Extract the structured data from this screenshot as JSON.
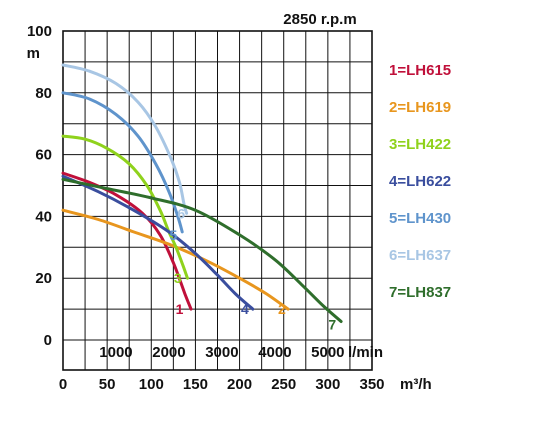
{
  "chart_data": {
    "type": "line",
    "title": "2850 r.p.m",
    "ylabel": "m",
    "xlabel_primary": "m³/h",
    "xlabel_secondary": "l/min",
    "ylim": [
      0,
      100
    ],
    "xlim": [
      0,
      350
    ],
    "yticks": [
      "0",
      "20",
      "40",
      "60",
      "80",
      "100"
    ],
    "xticks_primary": [
      "0",
      "50",
      "100",
      "150",
      "200",
      "250",
      "300",
      "350"
    ],
    "xticks_secondary": [
      "1000",
      "2000",
      "3000",
      "4000",
      "5000"
    ],
    "grid": true,
    "legend_position": "right",
    "series": [
      {
        "name": "1=LH615",
        "label": "1",
        "color": "#c0103a",
        "points": [
          [
            0,
            54
          ],
          [
            30,
            51
          ],
          [
            60,
            47
          ],
          [
            90,
            41
          ],
          [
            110,
            34
          ],
          [
            125,
            25
          ],
          [
            138,
            15
          ],
          [
            145,
            10
          ]
        ]
      },
      {
        "name": "2=LH619",
        "label": "2",
        "color": "#e8961e",
        "points": [
          [
            0,
            42
          ],
          [
            40,
            39
          ],
          [
            80,
            35
          ],
          [
            120,
            31
          ],
          [
            160,
            26
          ],
          [
            200,
            20
          ],
          [
            230,
            15
          ],
          [
            255,
            10
          ]
        ]
      },
      {
        "name": "3=LH422",
        "label": "3",
        "color": "#8fd21c",
        "points": [
          [
            0,
            66
          ],
          [
            25,
            65
          ],
          [
            50,
            62
          ],
          [
            75,
            57
          ],
          [
            95,
            50
          ],
          [
            110,
            42
          ],
          [
            120,
            35
          ],
          [
            128,
            30
          ],
          [
            136,
            24
          ],
          [
            141,
            20
          ]
        ]
      },
      {
        "name": "4=LH622",
        "label": "4",
        "color": "#3a4e9e",
        "points": [
          [
            0,
            53
          ],
          [
            40,
            48
          ],
          [
            80,
            42
          ],
          [
            120,
            35
          ],
          [
            150,
            28
          ],
          [
            175,
            21
          ],
          [
            195,
            15
          ],
          [
            215,
            10
          ]
        ]
      },
      {
        "name": "5=LH430",
        "label": "5",
        "color": "#5f94cc",
        "points": [
          [
            0,
            80
          ],
          [
            30,
            78
          ],
          [
            60,
            73
          ],
          [
            85,
            66
          ],
          [
            105,
            57
          ],
          [
            120,
            48
          ],
          [
            130,
            40
          ],
          [
            135,
            35
          ]
        ]
      },
      {
        "name": "6=LH637",
        "label": "6",
        "color": "#a8c6e4",
        "points": [
          [
            0,
            89
          ],
          [
            30,
            87
          ],
          [
            60,
            83
          ],
          [
            85,
            77
          ],
          [
            105,
            69
          ],
          [
            122,
            59
          ],
          [
            132,
            51
          ],
          [
            137,
            44
          ],
          [
            140,
            41
          ]
        ]
      },
      {
        "name": "7=LH837",
        "label": "7",
        "color": "#2f6e2c",
        "points": [
          [
            0,
            52
          ],
          [
            50,
            49
          ],
          [
            100,
            46
          ],
          [
            150,
            42
          ],
          [
            200,
            34
          ],
          [
            240,
            26
          ],
          [
            270,
            18
          ],
          [
            295,
            11
          ],
          [
            315,
            6
          ]
        ]
      }
    ],
    "label_points": {
      "1": [
        132,
        10
      ],
      "2": [
        248,
        10
      ],
      "3": [
        130,
        20
      ],
      "4": [
        206,
        10
      ],
      "5": [
        125,
        34
      ],
      "6": [
        134,
        41
      ],
      "7": [
        305,
        5
      ]
    }
  }
}
